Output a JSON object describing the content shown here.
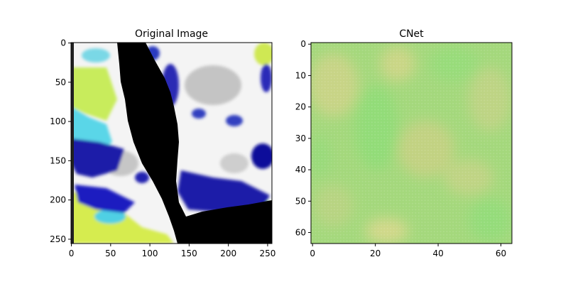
{
  "chart_data": [
    {
      "type": "heatmap",
      "title": "Original Image",
      "xlabel": "",
      "ylabel": "",
      "xlim": [
        0,
        256
      ],
      "ylim": [
        256,
        0
      ],
      "xticks": [
        0,
        50,
        100,
        150,
        200,
        250
      ],
      "yticks": [
        0,
        50,
        100,
        150,
        200,
        250
      ],
      "colors": {
        "black": "#000000",
        "white": "#ffffff",
        "blue": "#1a1aa8",
        "cyan": "#5ad6e8",
        "yellow": "#e4f04a",
        "green": "#8ee070",
        "gray": "#9c9c9c"
      }
    },
    {
      "type": "heatmap",
      "title": "CNet",
      "xlabel": "",
      "ylabel": "",
      "xlim": [
        0,
        64
      ],
      "ylim": [
        64,
        0
      ],
      "xticks": [
        0,
        20,
        40,
        60
      ],
      "yticks": [
        0,
        10,
        20,
        30,
        40,
        50,
        60
      ],
      "colors": {
        "base": "#a2d87c",
        "tan": "#c2d484",
        "green": "#96dc7a",
        "light": "#d4dc8a"
      }
    }
  ]
}
